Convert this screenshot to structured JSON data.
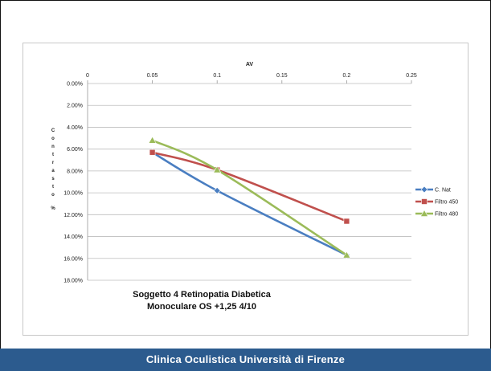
{
  "footer": {
    "text": "Clinica Oculistica Università di Firenze"
  },
  "chart_data": {
    "type": "line",
    "x_axis_title": "AV",
    "y_axis_title": "Contrasto %",
    "x_ticks": [
      "0",
      "0.05",
      "0.1",
      "0.15",
      "0.2",
      "0.25"
    ],
    "x_range": [
      0,
      0.25
    ],
    "y_ticks": [
      "0.00%",
      "2.00%",
      "4.00%",
      "6.00%",
      "8.00%",
      "10.00%",
      "12.00%",
      "14.00%",
      "16.00%",
      "18.00%"
    ],
    "y_range": [
      0,
      18
    ],
    "y_reversed": true,
    "grid": "horizontal",
    "legend_position": "right",
    "title_lines": [
      "Soggetto 4 Retinopatia Diabetica",
      "Monoculare OS +1,25  4/10"
    ],
    "series": [
      {
        "name": "C. Nat",
        "color": "#4a7ec1",
        "marker": "diamond",
        "x": [
          0.05,
          0.1,
          0.2
        ],
        "y": [
          6.3,
          9.8,
          15.7
        ]
      },
      {
        "name": "Filtro 450",
        "color": "#c0504d",
        "marker": "square",
        "x": [
          0.05,
          0.1,
          0.2
        ],
        "y": [
          6.3,
          7.9,
          12.6
        ]
      },
      {
        "name": "Filtro 480",
        "color": "#9bbb59",
        "marker": "triangle",
        "x": [
          0.05,
          0.1,
          0.2
        ],
        "y": [
          5.2,
          7.9,
          15.7
        ]
      }
    ]
  }
}
